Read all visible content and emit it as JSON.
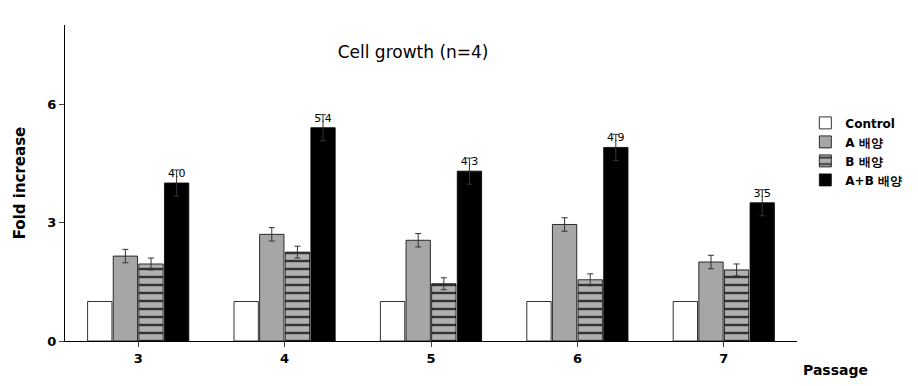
{
  "chart_data": {
    "type": "bar",
    "title": "Cell growth (n=4)",
    "xlabel": "Passage",
    "ylabel": "Fold increase",
    "categories": [
      "3",
      "4",
      "5",
      "6",
      "7"
    ],
    "series": [
      {
        "name": "Control",
        "color": "#ffffff",
        "values": [
          1,
          1,
          1,
          1,
          1
        ]
      },
      {
        "name": "A 배양",
        "color": "#a6a6a6",
        "values": [
          2.15,
          2.7,
          2.55,
          2.95,
          2.0
        ],
        "errors": [
          0.17,
          0.17,
          0.17,
          0.17,
          0.17
        ]
      },
      {
        "name": "B 배양",
        "color": "#b0b0b0",
        "marker": "striped",
        "values": [
          1.95,
          2.25,
          1.45,
          1.55,
          1.8
        ],
        "errors": [
          0.15,
          0.15,
          0.15,
          0.15,
          0.15
        ]
      },
      {
        "name": "A+B 배양",
        "color": "#000000",
        "data_labels": true,
        "values": [
          4.0,
          5.4,
          4.3,
          4.9,
          3.5
        ],
        "value_labels": [
          "4.0",
          "5.4",
          "4.3",
          "4.9",
          "3.5"
        ],
        "errors": [
          0.33,
          0.33,
          0.33,
          0.33,
          0.33
        ]
      }
    ],
    "ylim": [
      0,
      8
    ],
    "yticks": [
      0,
      3,
      6
    ],
    "grid": false,
    "legend": "right"
  }
}
